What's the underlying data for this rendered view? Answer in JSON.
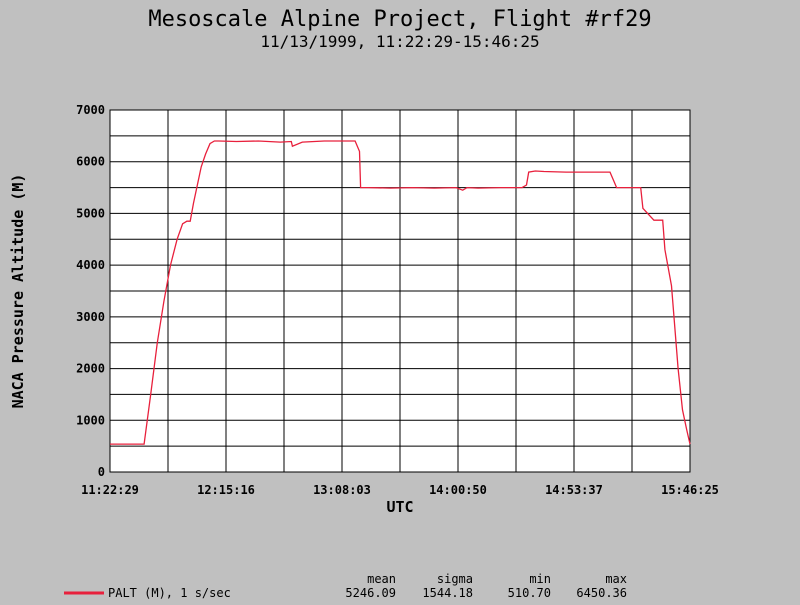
{
  "chart_data": {
    "type": "line",
    "title": "Mesoscale Alpine Project, Flight #rf29",
    "subtitle": "11/13/1999, 11:22:29-15:46:25",
    "xlabel": "UTC",
    "ylabel": "NACA Pressure Altitude (M)",
    "xlim": [
      "11:22:29",
      "15:46:25"
    ],
    "ylim": [
      0,
      7000
    ],
    "x_ticks": [
      "11:22:29",
      "12:15:16",
      "13:08:03",
      "14:00:50",
      "14:53:37",
      "15:46:25"
    ],
    "y_ticks": [
      "0",
      "1000",
      "2000",
      "3000",
      "4000",
      "5000",
      "6000",
      "7000"
    ],
    "grid": true,
    "series": [
      {
        "name": "PALT (M), 1 s/sec",
        "color": "#e8203c",
        "x": [
          "11:22:29",
          "11:38:00",
          "11:41:00",
          "11:44:00",
          "11:47:00",
          "11:50:00",
          "11:53:00",
          "11:55:30",
          "11:57:30",
          "11:59:00",
          "12:00:30",
          "12:02:00",
          "12:04:00",
          "12:06:00",
          "12:08:00",
          "12:10:00",
          "12:12:00",
          "12:20:00",
          "12:30:00",
          "12:40:00",
          "12:45:00",
          "12:45:30",
          "12:50:00",
          "13:00:00",
          "13:10:00",
          "13:14:00",
          "13:16:00",
          "13:16:30",
          "13:20:00",
          "13:30:00",
          "13:40:00",
          "13:50:00",
          "14:00:00",
          "14:03:00",
          "14:05:00",
          "14:10:00",
          "14:20:00",
          "14:30:00",
          "14:32:00",
          "14:33:00",
          "14:36:00",
          "14:40:00",
          "14:50:00",
          "15:00:00",
          "15:10:00",
          "15:12:00",
          "15:13:00",
          "15:17:00",
          "15:20:00",
          "15:22:00",
          "15:24:00",
          "15:25:00",
          "15:30:00",
          "15:31:00",
          "15:32:00",
          "15:33:00",
          "15:34:00",
          "15:35:00",
          "15:38:00",
          "15:41:00",
          "15:43:00",
          "15:45:00",
          "15:46:25"
        ],
        "y": [
          540,
          540,
          1500,
          2500,
          3300,
          4000,
          4500,
          4800,
          4850,
          4850,
          5200,
          5500,
          5900,
          6150,
          6350,
          6400,
          6400,
          6390,
          6400,
          6380,
          6390,
          6300,
          6380,
          6400,
          6400,
          6400,
          6200,
          5500,
          5500,
          5490,
          5500,
          5490,
          5500,
          5450,
          5500,
          5490,
          5500,
          5500,
          5550,
          5800,
          5820,
          5810,
          5800,
          5800,
          5800,
          5600,
          5500,
          5500,
          5500,
          5500,
          5500,
          5100,
          4870,
          4870,
          4870,
          4870,
          4870,
          4300,
          3600,
          2000,
          1200,
          800,
          540
        ]
      }
    ],
    "legend": {
      "placement": "bottom-left",
      "stat_headers": [
        "mean",
        "sigma",
        "min",
        "max"
      ],
      "stat_values": [
        "5246.09",
        "1544.18",
        "510.70",
        "6450.36"
      ]
    }
  }
}
